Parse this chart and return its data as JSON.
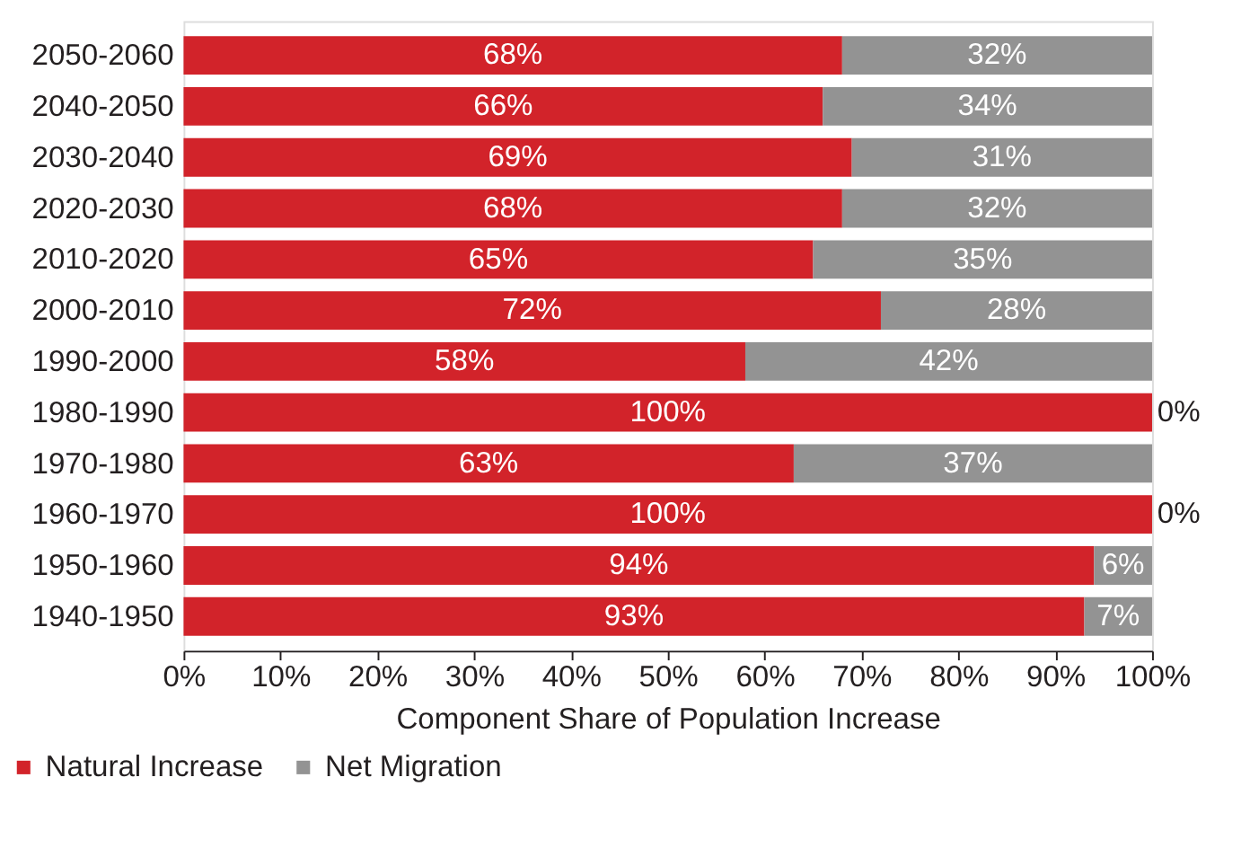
{
  "chart_data": {
    "type": "bar",
    "orientation": "horizontal",
    "stacked": true,
    "xlabel": "Component Share of Population Increase",
    "categories": [
      "2050-2060",
      "2040-2050",
      "2030-2040",
      "2020-2030",
      "2010-2020",
      "2000-2010",
      "1990-2000",
      "1980-1990",
      "1970-1980",
      "1960-1970",
      "1950-1960",
      "1940-1950"
    ],
    "series": [
      {
        "name": "Natural Increase",
        "color": "#d2232a",
        "values": [
          68,
          66,
          69,
          68,
          65,
          72,
          58,
          100,
          63,
          100,
          94,
          93
        ],
        "value_labels": [
          "68%",
          "66%",
          "69%",
          "68%",
          "65%",
          "72%",
          "58%",
          "100%",
          "63%",
          "100%",
          "94%",
          "93%"
        ]
      },
      {
        "name": "Net Migration",
        "color": "#939393",
        "values": [
          32,
          34,
          31,
          32,
          35,
          28,
          42,
          0,
          37,
          0,
          6,
          7
        ],
        "value_labels": [
          "32%",
          "34%",
          "31%",
          "32%",
          "35%",
          "28%",
          "42%",
          "0%",
          "37%",
          "0%",
          "6%",
          "7%"
        ]
      }
    ],
    "xlim": [
      0,
      100
    ],
    "xticks": [
      {
        "value": 0,
        "label": "0%"
      },
      {
        "value": 10,
        "label": "10%"
      },
      {
        "value": 20,
        "label": "20%"
      },
      {
        "value": 30,
        "label": "30%"
      },
      {
        "value": 40,
        "label": "40%"
      },
      {
        "value": 50,
        "label": "50%"
      },
      {
        "value": 60,
        "label": "60%"
      },
      {
        "value": 70,
        "label": "70%"
      },
      {
        "value": 80,
        "label": "80%"
      },
      {
        "value": 90,
        "label": "90%"
      },
      {
        "value": 100,
        "label": "100%"
      }
    ],
    "grid": false,
    "legend": "bottom left"
  }
}
